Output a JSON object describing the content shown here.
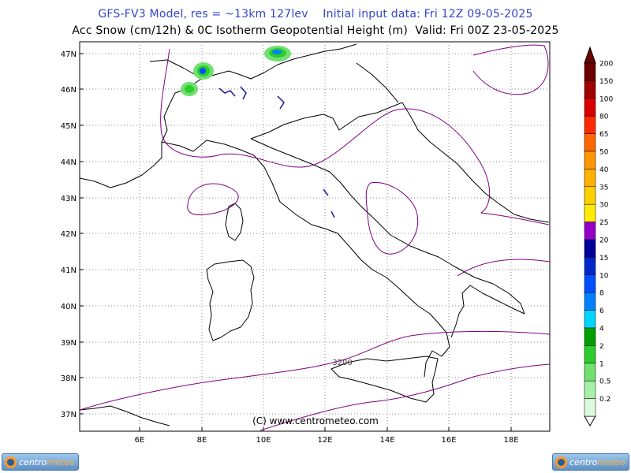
{
  "header": {
    "title_line1": "GFS-FV3 Model, res = ~13km 127lev    Initial input data: Fri 12Z 09-05-2025",
    "title_line2": "Acc Snow (cm/12h) & 0C Isotherm Geopotential Height (m)  Valid: Fri 00Z 23-05-2025"
  },
  "map": {
    "lat_labels": [
      "47N",
      "46N",
      "45N",
      "44N",
      "43N",
      "42N",
      "41N",
      "40N",
      "39N",
      "38N",
      "37N"
    ],
    "lon_labels": [
      "6E",
      "8E",
      "10E",
      "12E",
      "14E",
      "16E",
      "18E"
    ],
    "contour_label": "3200",
    "copyright": "(C) www.centrometeo.com"
  },
  "legend": {
    "levels": [
      "200",
      "150",
      "100",
      "80",
      "65",
      "50",
      "40",
      "35",
      "30",
      "25",
      "20",
      "15",
      "10",
      "8",
      "6",
      "4",
      "2",
      "1",
      "0.5",
      "0.2"
    ],
    "colors": [
      "#6a0000",
      "#a00000",
      "#d80000",
      "#ff2a00",
      "#ff6600",
      "#ff9500",
      "#ffb100",
      "#ffd000",
      "#ffec00",
      "#9400c8",
      "#00009a",
      "#0028c8",
      "#0050ff",
      "#0082ff",
      "#00d4ff",
      "#00a000",
      "#2ccc2c",
      "#70e070",
      "#a8f0a8",
      "#dcfadc"
    ]
  },
  "logos": {
    "brand_white": "centro",
    "brand_orange": "meteo"
  }
}
